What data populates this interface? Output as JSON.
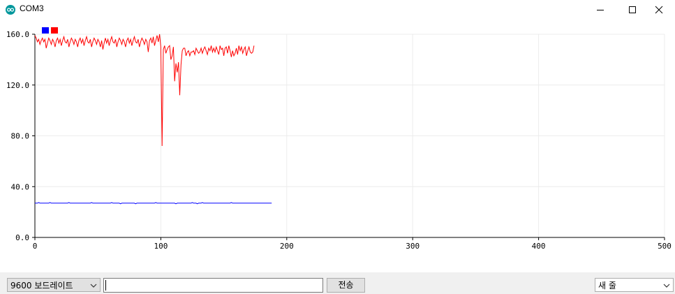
{
  "window": {
    "title": "COM3"
  },
  "icons": {
    "app": "arduino-icon",
    "minimize": "minimize-icon",
    "maximize": "maximize-icon",
    "close": "close-icon",
    "dropdown": "chevron-down-icon"
  },
  "toolbar": {
    "baud_label": "9600 보드레이트",
    "message_value": "",
    "send_label": "전송",
    "line_ending_label": "새 줄"
  },
  "chart_data": {
    "type": "line",
    "xlim": [
      0,
      500
    ],
    "ylim": [
      0,
      160
    ],
    "x_ticks": [
      "0",
      "100",
      "200",
      "300",
      "400",
      "500"
    ],
    "y_ticks": [
      "0.0",
      "40.0",
      "80.0",
      "120.0",
      "160.0"
    ],
    "grid": true,
    "legend": "top-left",
    "series": [
      {
        "color": "#0000ff",
        "values": [
          27,
          27,
          27,
          27.5,
          27,
          27,
          27,
          27,
          27,
          27,
          27,
          27,
          27.5,
          27,
          27,
          27,
          27,
          27,
          27,
          27,
          27,
          27,
          27,
          27,
          27,
          27,
          27,
          27.5,
          27,
          27,
          27,
          27,
          27,
          27,
          27,
          27,
          27,
          27,
          27,
          27,
          27,
          27,
          27,
          27,
          27,
          27.5,
          27,
          27,
          27,
          27,
          27,
          27,
          27,
          27,
          27,
          27,
          27,
          27,
          27,
          27,
          27,
          27.5,
          27,
          27,
          27,
          27,
          27,
          27,
          26.5,
          27,
          27,
          27,
          27,
          27,
          27,
          27,
          27,
          27,
          27,
          27,
          26.5,
          27,
          27,
          27,
          27,
          27,
          27,
          27,
          27,
          27,
          27,
          27,
          27,
          27,
          27,
          27,
          27.5,
          27,
          27,
          27,
          27,
          27,
          27,
          27,
          27,
          27,
          27,
          27,
          27,
          27,
          27,
          27,
          26.5,
          27,
          27,
          27,
          27,
          27,
          27,
          27,
          27,
          27,
          27,
          27,
          27,
          27.5,
          27,
          27,
          27,
          26.5,
          27,
          27,
          27,
          27.5,
          27,
          27,
          27,
          27,
          27,
          27,
          27,
          27,
          27,
          27,
          27,
          27,
          27,
          27,
          27,
          27,
          27,
          27,
          27,
          27,
          27,
          27,
          27.5,
          27,
          27,
          27,
          27,
          27,
          27,
          27,
          27,
          27,
          27,
          27,
          27,
          27,
          27,
          27,
          27,
          27,
          27,
          27,
          27,
          27,
          27,
          27,
          27,
          27,
          27,
          27,
          27,
          27,
          27,
          27,
          27
        ]
      },
      {
        "color": "#ff0000",
        "values": [
          159,
          157,
          154,
          156,
          152,
          155,
          157,
          154,
          156,
          149,
          153,
          157,
          155,
          152,
          156,
          154,
          150,
          155,
          157,
          153,
          156,
          151,
          155,
          158,
          154,
          153,
          156,
          150,
          154,
          157,
          155,
          152,
          156,
          154,
          150,
          155,
          157,
          153,
          156,
          151,
          155,
          158,
          154,
          153,
          156,
          150,
          154,
          157,
          155,
          152,
          156,
          154,
          150,
          155,
          148,
          153,
          157,
          153,
          156,
          151,
          155,
          158,
          154,
          153,
          156,
          150,
          154,
          157,
          155,
          152,
          156,
          154,
          150,
          155,
          157,
          153,
          156,
          151,
          155,
          158,
          154,
          153,
          156,
          150,
          154,
          157,
          155,
          152,
          156,
          154,
          146,
          155,
          157,
          153,
          158,
          151,
          155,
          159,
          154,
          160,
          150,
          72,
          148,
          151,
          145,
          148,
          150,
          151,
          140,
          143,
          150,
          123,
          137,
          130,
          138,
          112,
          136,
          147,
          149,
          149,
          143,
          146,
          147,
          143,
          146,
          146,
          147,
          144,
          149,
          147,
          145,
          146,
          149,
          145,
          148,
          150,
          147,
          144,
          149,
          147,
          151,
          146,
          149,
          146,
          150,
          147,
          144,
          151,
          148,
          149,
          143,
          149,
          150,
          145,
          151,
          147,
          142,
          147,
          143,
          145,
          149,
          144,
          151,
          147,
          150,
          145,
          148,
          150,
          143,
          147,
          150,
          146,
          145,
          146,
          151
        ]
      }
    ]
  }
}
